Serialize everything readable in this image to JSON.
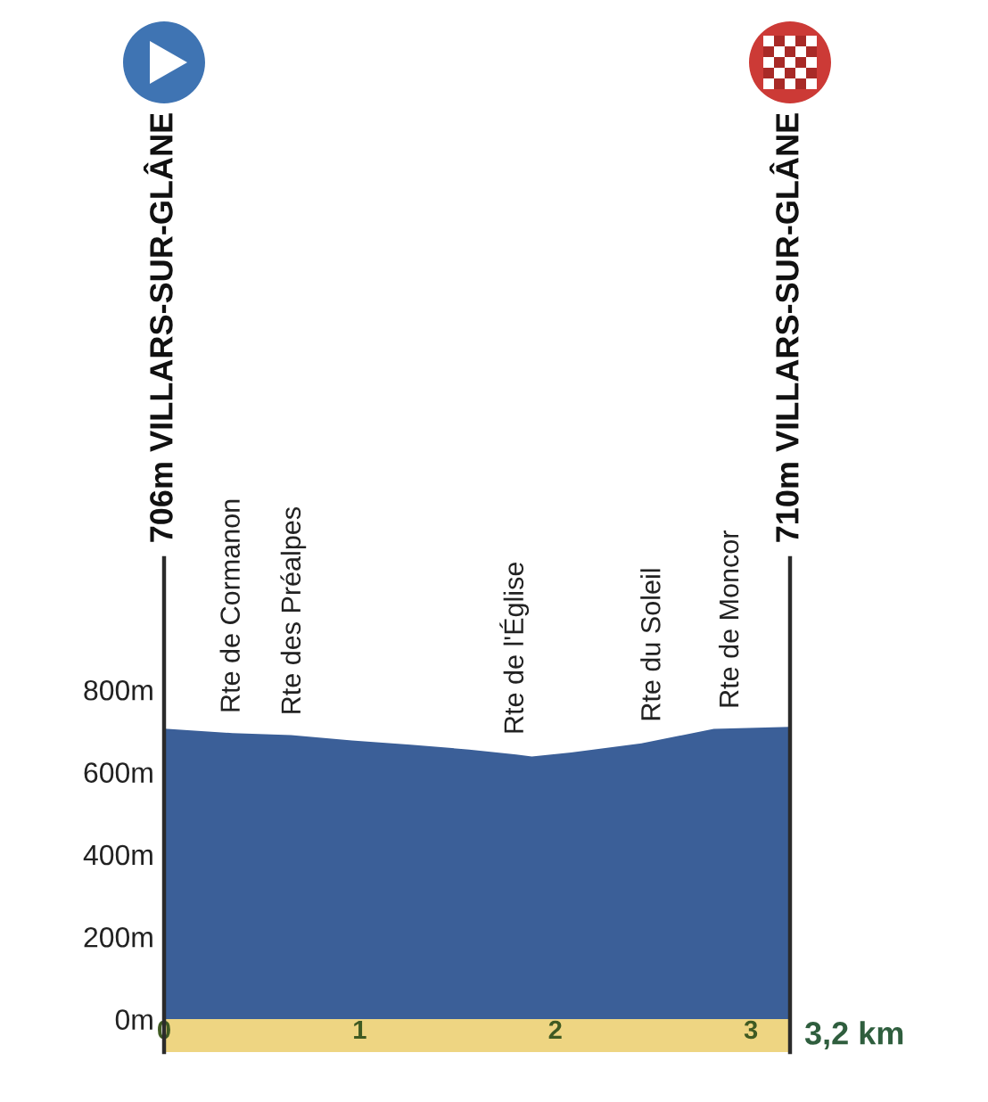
{
  "chart_data": {
    "type": "area",
    "x": [
      0,
      0.35,
      0.65,
      0.96,
      1.26,
      1.56,
      1.8,
      1.88,
      2.08,
      2.44,
      2.81,
      3.2
    ],
    "values": [
      706,
      695,
      690,
      677,
      667,
      655,
      643,
      638,
      648,
      670,
      705,
      710
    ],
    "color": "#3b5f98",
    "xlim": [
      0,
      3.2
    ],
    "xticks": [
      0,
      1,
      2,
      3
    ],
    "xlabel": "3,2 km",
    "ylim": [
      -80,
      1120
    ],
    "yticks": [
      {
        "value": 0,
        "label": "0m"
      },
      {
        "value": 200,
        "label": "200m"
      },
      {
        "value": 400,
        "label": "400m"
      },
      {
        "value": 600,
        "label": "600m"
      },
      {
        "value": 800,
        "label": "800m"
      }
    ],
    "annotations": [
      "706m VILLARS-SUR-GLÂNE",
      "710m VILLARS-SUR-GLÂNE",
      {
        "text": "Rte de Cormanon",
        "x": 0.35,
        "y": 695
      },
      {
        "text": "Rte des Préalpes",
        "x": 0.66,
        "y": 690
      },
      {
        "text": "Rte de l'Église",
        "x": 1.79,
        "y": 643
      },
      {
        "text": "Rte du Soleil",
        "x": 2.5,
        "y": 674
      },
      {
        "text": "Rte de Moncor",
        "x": 2.9,
        "y": 706
      }
    ]
  }
}
